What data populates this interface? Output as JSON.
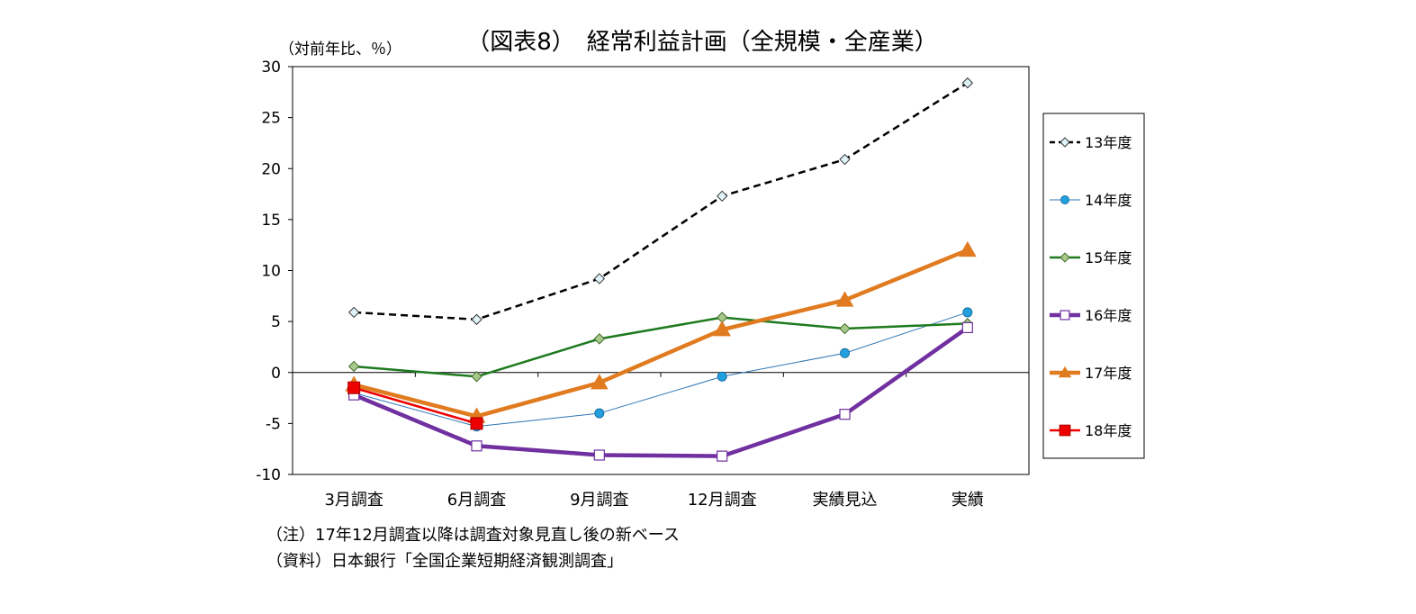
{
  "chart_data": {
    "type": "line",
    "title": "（図表8）　経常利益計画（全規模・全産業）",
    "ylabel": "（対前年比、％）",
    "xlabel": "",
    "ylim": [
      -10,
      30
    ],
    "yticks": [
      30,
      25,
      20,
      15,
      10,
      5,
      0,
      -5,
      -10
    ],
    "categories": [
      "3月調査",
      "6月調査",
      "9月調査",
      "12月調査",
      "実績見込",
      "実績"
    ],
    "legend_position": "right",
    "grid": false,
    "series": [
      {
        "name": "13年度",
        "values": [
          5.9,
          5.2,
          9.2,
          17.3,
          20.9,
          28.4
        ],
        "color": "#000000",
        "marker": "diamond-open",
        "line": "dashed"
      },
      {
        "name": "14年度",
        "values": [
          -2.0,
          -5.3,
          -4.0,
          -0.4,
          1.9,
          5.9
        ],
        "color": "#2e75b6",
        "marker": "circle",
        "line": "thin"
      },
      {
        "name": "15年度",
        "values": [
          0.6,
          -0.4,
          3.3,
          5.4,
          4.3,
          4.8
        ],
        "color": "#1e7a1e",
        "marker": "diamond",
        "line": "medium"
      },
      {
        "name": "16年度",
        "values": [
          -2.2,
          -7.2,
          -8.1,
          -8.2,
          -4.1,
          4.4
        ],
        "color": "#7030a0",
        "marker": "square-open",
        "line": "thick"
      },
      {
        "name": "17年度",
        "values": [
          -1.2,
          -4.3,
          -1.0,
          4.2,
          7.1,
          12.0
        ],
        "color": "#e07b20",
        "marker": "triangle",
        "line": "thick"
      },
      {
        "name": "18年度",
        "values": [
          -1.5,
          -5.0,
          null,
          null,
          null,
          null
        ],
        "color": "#ee0000",
        "marker": "square",
        "line": "medium"
      }
    ]
  },
  "notes": [
    "（注）17年12月調査以降は調査対象見直し後の新ベース",
    "（資料）日本銀行「全国企業短期経済観測調査」"
  ]
}
